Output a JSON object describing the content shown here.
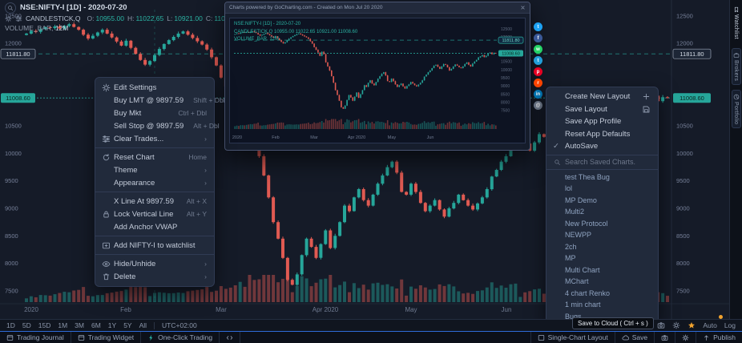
{
  "colors": {
    "up": "#26a69a",
    "down": "#e05a52",
    "accent": "#2e6bd8",
    "warn": "#f0a22e",
    "chart_bg": "#151b28"
  },
  "legend": {
    "symbol": "NSE:NIFTY-I [1D] - 2020-07-20",
    "series": "CANDLESTICK,Q",
    "ohlc": [
      {
        "label": "O:",
        "value": "10955.00"
      },
      {
        "label": "H:",
        "value": "11022.65"
      },
      {
        "label": "L:",
        "value": "10921.00"
      },
      {
        "label": "C:",
        "value": "11008.60"
      }
    ],
    "volume_label": "VOLUME_BAR,",
    "volume_value": "12M"
  },
  "axes": {
    "price_ticks": [
      12500,
      12000,
      10500,
      10000,
      9500,
      9000,
      8500,
      8000,
      7500
    ],
    "boxed_level": 11811.8,
    "current_price": 11008.6,
    "months": [
      {
        "label": "2020",
        "i": 1
      },
      {
        "label": "Feb",
        "i": 21
      },
      {
        "label": "Mar",
        "i": 41
      },
      {
        "label": "Apr 2020",
        "i": 63
      },
      {
        "label": "May",
        "i": 81
      },
      {
        "label": "Jun",
        "i": 101
      }
    ]
  },
  "chart_data": {
    "type": "candlestick",
    "symbol": "NSE:NIFTY-I",
    "interval": "1D",
    "ylim": [
      7400,
      12650
    ],
    "closes": [
      12180,
      12230,
      12210,
      12260,
      12295,
      12280,
      12310,
      12270,
      12320,
      12350,
      12300,
      12250,
      12160,
      12090,
      12140,
      12200,
      12250,
      12180,
      12110,
      12035,
      11960,
      12050,
      11920,
      11810,
      11700,
      11615,
      11680,
      11790,
      11900,
      11990,
      12060,
      12120,
      12180,
      12220,
      12160,
      12100,
      12040,
      11980,
      11890,
      11750,
      11600,
      11380,
      11220,
      11050,
      10850,
      11100,
      10950,
      10450,
      10200,
      9950,
      9600,
      9200,
      8750,
      8450,
      8100,
      7700,
      7611,
      7800,
      8150,
      8450,
      8300,
      8100,
      8350,
      8600,
      8280,
      8500,
      8750,
      9050,
      8950,
      9200,
      9350,
      9150,
      9050,
      9250,
      9450,
      9600,
      9750,
      9850,
      9650,
      9300,
      9250,
      9450,
      9300,
      9100,
      8950,
      9050,
      9150,
      8980,
      8850,
      9000,
      9100,
      9250,
      9150,
      9050,
      8980,
      9090,
      9200,
      9350,
      9580,
      9700,
      9850,
      9950,
      10100,
      10250,
      10300,
      10180,
      10050,
      10200,
      10350,
      10300,
      10150,
      9950,
      10050,
      10200,
      10320,
      10250,
      10150,
      10100,
      10200,
      10350,
      10450,
      10300,
      10200,
      10380,
      10500,
      10600,
      10750,
      10820,
      10900,
      10770,
      10850,
      11000,
      11050,
      10950,
      11022,
      11008.6
    ]
  },
  "context_menu": {
    "items": [
      {
        "label": "Edit Settings",
        "icon": "gear"
      },
      {
        "label": "Buy LMT @ 9897.59",
        "shortcut": "Shift + Dbl"
      },
      {
        "label": "Buy Mkt",
        "shortcut": "Ctrl + Dbl"
      },
      {
        "label": "Sell Stop @ 9897.59",
        "shortcut": "Alt + Dbl"
      },
      {
        "label": "Clear Trades...",
        "icon": "sliders",
        "submenu": true
      },
      {
        "type": "sep"
      },
      {
        "label": "Reset Chart",
        "icon": "refresh",
        "shortcut": "Home"
      },
      {
        "label": "Theme",
        "submenu": true
      },
      {
        "label": "Appearance",
        "submenu": true
      },
      {
        "type": "sep"
      },
      {
        "label": "X Line At 9897.59",
        "shortcut": "Alt + X"
      },
      {
        "label": "Lock Vertical Line",
        "icon": "lock",
        "shortcut": "Alt + Y"
      },
      {
        "label": "Add Anchor VWAP"
      },
      {
        "type": "sep"
      },
      {
        "label": "Add NIFTY-I to watchlist",
        "icon": "watchadd"
      },
      {
        "type": "sep"
      },
      {
        "label": "Hide/Unhide",
        "icon": "eye",
        "submenu": true
      },
      {
        "label": "Delete",
        "icon": "trash",
        "submenu": true
      }
    ]
  },
  "layout_menu": {
    "items": [
      {
        "label": "Create New Layout",
        "right_icon": "plus"
      },
      {
        "label": "Save Layout",
        "right_icon": "floppy"
      },
      {
        "label": "Save App Profile"
      },
      {
        "label": "Reset App Defaults"
      },
      {
        "label": "AutoSave",
        "check": true
      }
    ],
    "search_placeholder": "Search Saved Charts.",
    "charts": [
      "test Thea Bug",
      "lol",
      "MP Demo",
      "Multi2",
      "New Protocol",
      "NEWPP",
      "2ch",
      "MP",
      "Multi Chart",
      "MChart",
      "4 chart Renko",
      "1 min chart",
      "Bugs"
    ]
  },
  "snapshot": {
    "title": "Charts powered by GoCharting.com - Created on Mon Jul 20 2020",
    "legend_lines": [
      "NSE:NIFTY-I [1D] - 2020-07-20",
      "CANDLESTICK,Q  10955.00  11022.65  10921.00  11008.60",
      "VOLUME_BAR, 12M"
    ],
    "social": [
      {
        "name": "twitter",
        "color": "#1DA1F2",
        "glyph": "t"
      },
      {
        "name": "facebook",
        "color": "#3B5998",
        "glyph": "f"
      },
      {
        "name": "whatsapp",
        "color": "#25D366",
        "glyph": "w"
      },
      {
        "name": "telegram",
        "color": "#229ED9",
        "glyph": "t"
      },
      {
        "name": "pinterest",
        "color": "#E60023",
        "glyph": "p"
      },
      {
        "name": "reddit",
        "color": "#FF4500",
        "glyph": "r"
      },
      {
        "name": "linkedin",
        "color": "#0077B5",
        "glyph": "in"
      },
      {
        "name": "email",
        "color": "#6b7687",
        "glyph": "@"
      }
    ]
  },
  "toolbar": {
    "ranges": [
      "1D",
      "5D",
      "15D",
      "1M",
      "3M",
      "6M",
      "1Y",
      "5Y",
      "All"
    ],
    "timezone": "UTC+02:00",
    "right_labels": [
      "Auto",
      "Log"
    ]
  },
  "statusbar": {
    "left": [
      {
        "label": "Trading Journal",
        "icon": "window"
      },
      {
        "label": "Trading Widget",
        "icon": "window"
      },
      {
        "label": "One-Click Trading",
        "icon": "bolt",
        "accent": true
      },
      {
        "label": "",
        "icon": "code"
      }
    ],
    "right": [
      {
        "label": "Single-Chart Layout",
        "icon": "layout"
      },
      {
        "label": "Save",
        "icon": "cloud"
      },
      {
        "label": "",
        "icon": "camera"
      },
      {
        "label": "",
        "icon": "gear"
      },
      {
        "label": "Publish",
        "icon": "up"
      }
    ]
  },
  "tooltip": "Save to Cloud ( Ctrl + s )",
  "side_tabs": [
    {
      "label": "Watchlist",
      "icon": "bookmark"
    },
    {
      "label": "Brokers",
      "icon": "case"
    },
    {
      "label": "Portfolio",
      "icon": "pie"
    }
  ]
}
